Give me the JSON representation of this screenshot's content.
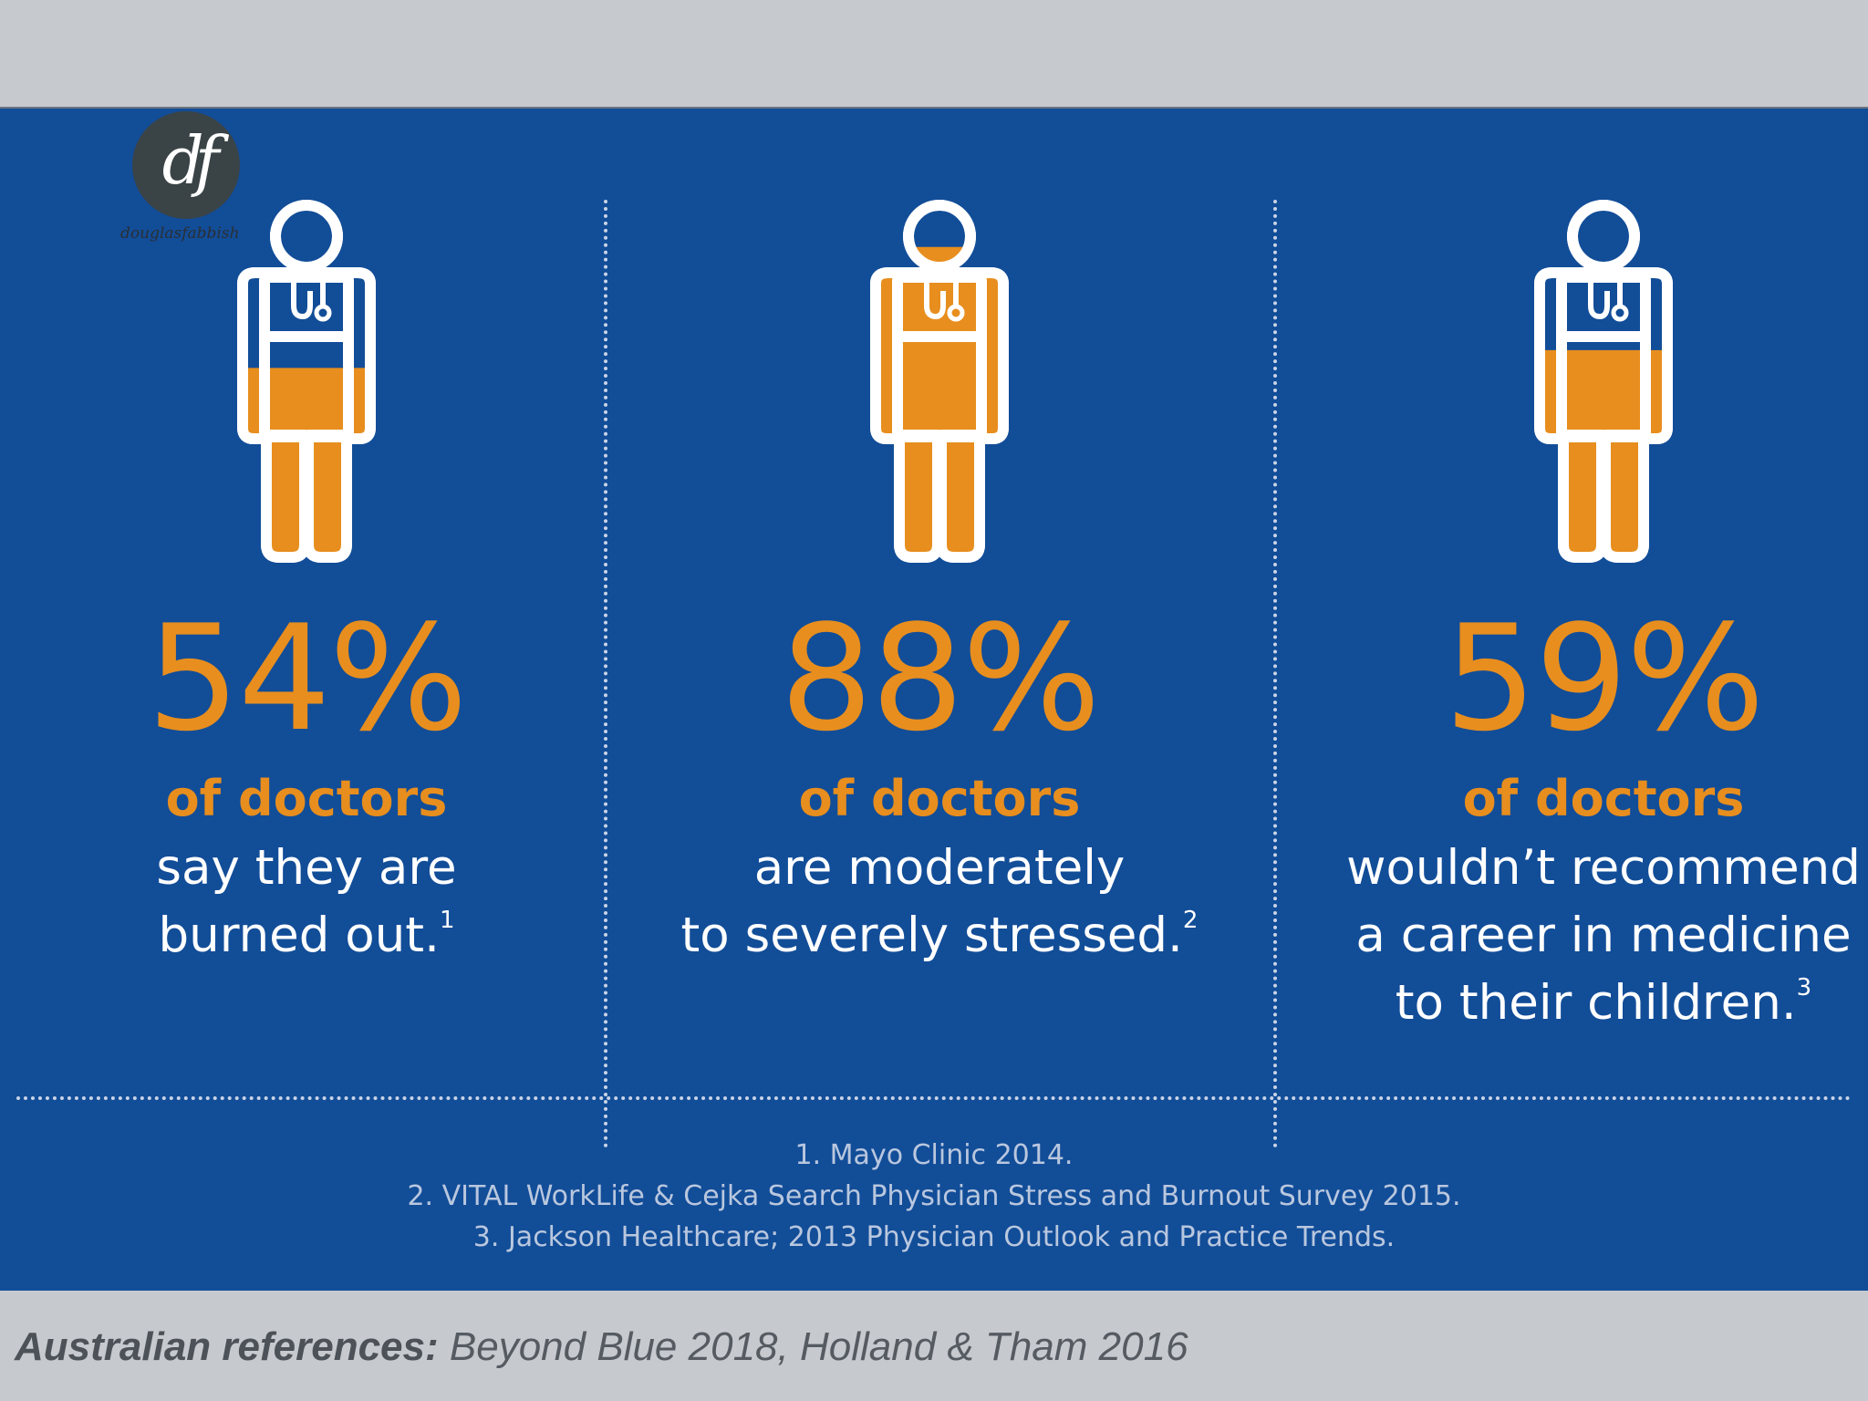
{
  "logo": {
    "mark": "df",
    "text": "douglasfabbish"
  },
  "stats": [
    {
      "percent": "54%",
      "subtitle": "of doctors",
      "lines": [
        "say they are",
        "burned out."
      ],
      "ref": "1",
      "fill": 0.54
    },
    {
      "percent": "88%",
      "subtitle": "of doctors",
      "lines": [
        "are moderately",
        "to severely stressed."
      ],
      "ref": "2",
      "fill": 0.88
    },
    {
      "percent": "59%",
      "subtitle": "of doctors",
      "lines": [
        "wouldn’t recommend",
        "a career in medicine",
        "to their children."
      ],
      "ref": "3",
      "fill": 0.59
    }
  ],
  "references": [
    "1. Mayo Clinic 2014.",
    "2. VITAL WorkLife & Cejka Search Physician Stress and Burnout Survey 2015.",
    "3. Jackson Healthcare; 2013 Physician Outlook and Practice Trends."
  ],
  "footer": {
    "label": "Australian references:",
    "text": " Beyond Blue 2018, Holland & Tham 2016"
  },
  "colors": {
    "panel": "#124d98",
    "accent": "#e78e1e",
    "background": "#c6cacf"
  }
}
